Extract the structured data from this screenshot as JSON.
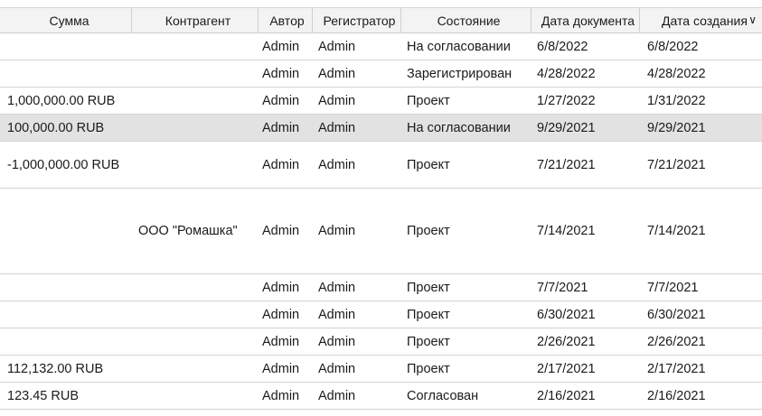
{
  "columns": [
    "Сумма",
    "Контрагент",
    "Автор",
    "Регистратор",
    "Состояние",
    "Дата документа",
    "Дата создания"
  ],
  "sort_icon": "chevron-down-icon",
  "selected_row": 3,
  "rows": [
    [
      "",
      "",
      "Admin",
      "Admin",
      "На согласовании",
      "6/8/2022",
      "6/8/2022"
    ],
    [
      "",
      "",
      "Admin",
      "Admin",
      "Зарегистрирован",
      "4/28/2022",
      "4/28/2022"
    ],
    [
      "1,000,000.00 RUB",
      "",
      "Admin",
      "Admin",
      "Проект",
      "1/27/2022",
      "1/31/2022"
    ],
    [
      "100,000.00 RUB",
      "",
      "Admin",
      "Admin",
      "На согласовании",
      "9/29/2021",
      "9/29/2021"
    ],
    [
      "-1,000,000.00 RUB",
      "",
      "Admin",
      "Admin",
      "Проект",
      "7/21/2021",
      "7/21/2021"
    ],
    [
      "",
      "ООО \"Ромашка\"",
      "Admin",
      "Admin",
      "Проект",
      "7/14/2021",
      "7/14/2021"
    ],
    [
      "",
      "",
      "Admin",
      "Admin",
      "Проект",
      "7/7/2021",
      "7/7/2021"
    ],
    [
      "",
      "",
      "Admin",
      "Admin",
      "Проект",
      "6/30/2021",
      "6/30/2021"
    ],
    [
      "",
      "",
      "Admin",
      "Admin",
      "Проект",
      "2/26/2021",
      "2/26/2021"
    ],
    [
      "112,132.00 RUB",
      "",
      "Admin",
      "Admin",
      "Проект",
      "2/17/2021",
      "2/17/2021"
    ],
    [
      "123.45 RUB",
      "",
      "Admin",
      "Admin",
      "Согласован",
      "2/16/2021",
      "2/16/2021"
    ]
  ]
}
